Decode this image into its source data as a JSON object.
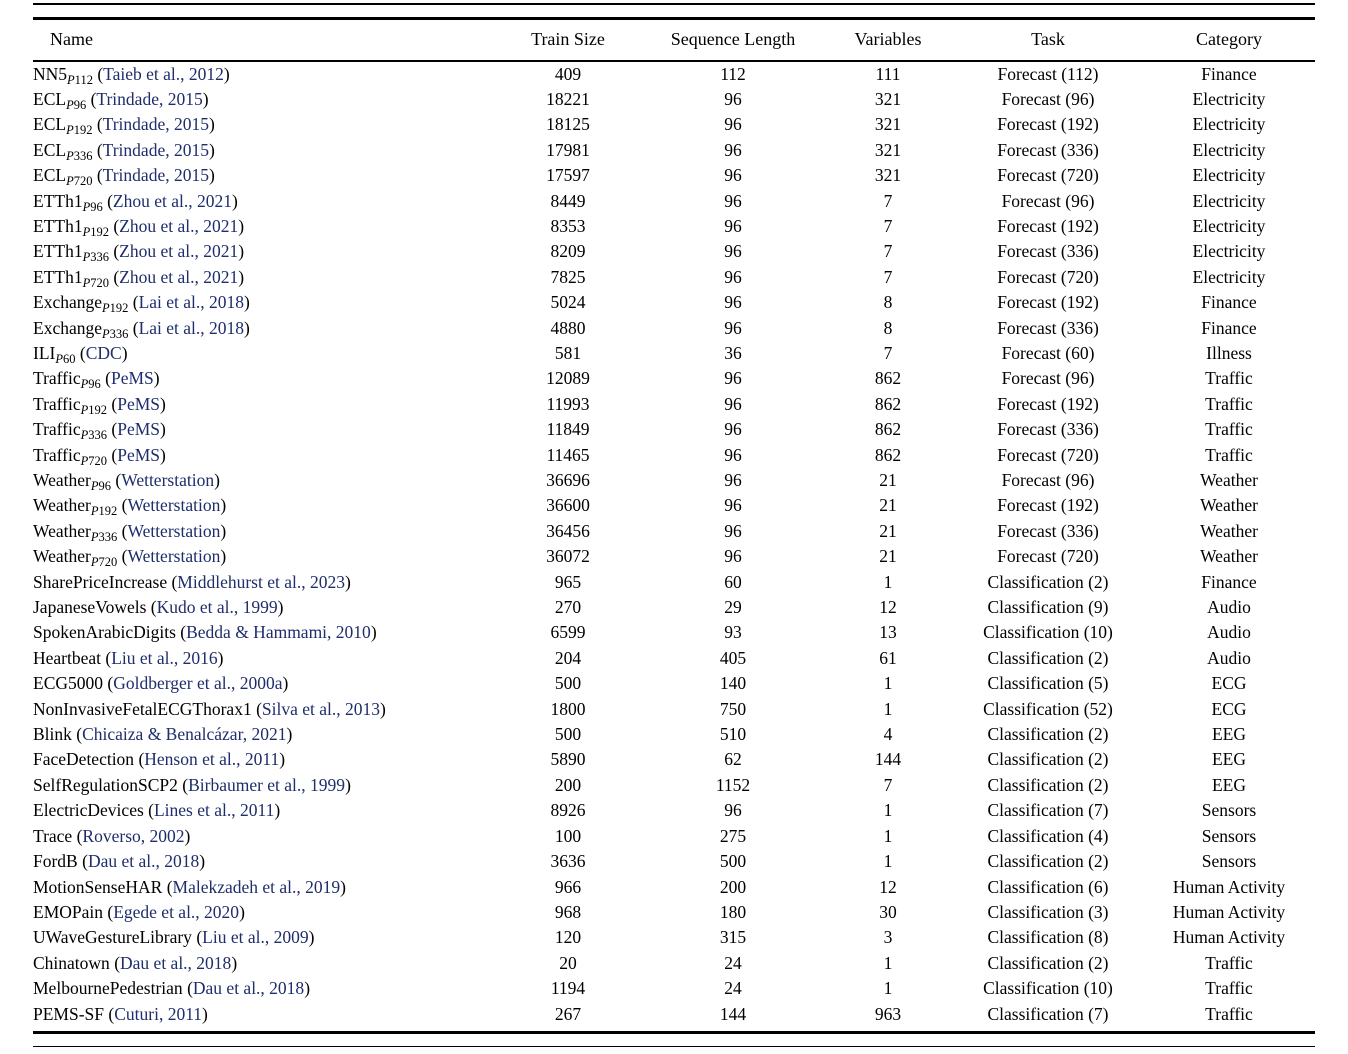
{
  "table": {
    "columns": [
      "Name",
      "Train Size",
      "Sequence Length",
      "Variables",
      "Task",
      "Category"
    ],
    "text_color": "#000000",
    "citation_color": "#1e2d6b",
    "rows": [
      {
        "name": "NN5",
        "subscript": "P112",
        "citation": "Taieb et al., 2012",
        "train_size": "409",
        "sequence_length": "112",
        "variables": "111",
        "task": "Forecast (112)",
        "category": "Finance"
      },
      {
        "name": "ECL",
        "subscript": "P96",
        "citation": "Trindade, 2015",
        "train_size": "18221",
        "sequence_length": "96",
        "variables": "321",
        "task": "Forecast (96)",
        "category": "Electricity"
      },
      {
        "name": "ECL",
        "subscript": "P192",
        "citation": "Trindade, 2015",
        "train_size": "18125",
        "sequence_length": "96",
        "variables": "321",
        "task": "Forecast (192)",
        "category": "Electricity"
      },
      {
        "name": "ECL",
        "subscript": "P336",
        "citation": "Trindade, 2015",
        "train_size": "17981",
        "sequence_length": "96",
        "variables": "321",
        "task": "Forecast (336)",
        "category": "Electricity"
      },
      {
        "name": "ECL",
        "subscript": "P720",
        "citation": "Trindade, 2015",
        "train_size": "17597",
        "sequence_length": "96",
        "variables": "321",
        "task": "Forecast (720)",
        "category": "Electricity"
      },
      {
        "name": "ETTh1",
        "subscript": "P96",
        "citation": "Zhou et al., 2021",
        "train_size": "8449",
        "sequence_length": "96",
        "variables": "7",
        "task": "Forecast (96)",
        "category": "Electricity"
      },
      {
        "name": "ETTh1",
        "subscript": "P192",
        "citation": "Zhou et al., 2021",
        "train_size": "8353",
        "sequence_length": "96",
        "variables": "7",
        "task": "Forecast (192)",
        "category": "Electricity"
      },
      {
        "name": "ETTh1",
        "subscript": "P336",
        "citation": "Zhou et al., 2021",
        "train_size": "8209",
        "sequence_length": "96",
        "variables": "7",
        "task": "Forecast (336)",
        "category": "Electricity"
      },
      {
        "name": "ETTh1",
        "subscript": "P720",
        "citation": "Zhou et al., 2021",
        "train_size": "7825",
        "sequence_length": "96",
        "variables": "7",
        "task": "Forecast (720)",
        "category": "Electricity"
      },
      {
        "name": "Exchange",
        "subscript": "P192",
        "citation": "Lai et al., 2018",
        "train_size": "5024",
        "sequence_length": "96",
        "variables": "8",
        "task": "Forecast (192)",
        "category": "Finance"
      },
      {
        "name": "Exchange",
        "subscript": "P336",
        "citation": "Lai et al., 2018",
        "train_size": "4880",
        "sequence_length": "96",
        "variables": "8",
        "task": "Forecast (336)",
        "category": "Finance"
      },
      {
        "name": "ILI",
        "subscript": "P60",
        "citation": "CDC",
        "train_size": "581",
        "sequence_length": "36",
        "variables": "7",
        "task": "Forecast (60)",
        "category": "Illness"
      },
      {
        "name": "Traffic",
        "subscript": "P96",
        "citation": "PeMS",
        "train_size": "12089",
        "sequence_length": "96",
        "variables": "862",
        "task": "Forecast (96)",
        "category": "Traffic"
      },
      {
        "name": "Traffic",
        "subscript": "P192",
        "citation": "PeMS",
        "train_size": "11993",
        "sequence_length": "96",
        "variables": "862",
        "task": "Forecast (192)",
        "category": "Traffic"
      },
      {
        "name": "Traffic",
        "subscript": "P336",
        "citation": "PeMS",
        "train_size": "11849",
        "sequence_length": "96",
        "variables": "862",
        "task": "Forecast (336)",
        "category": "Traffic"
      },
      {
        "name": "Traffic",
        "subscript": "P720",
        "citation": "PeMS",
        "train_size": "11465",
        "sequence_length": "96",
        "variables": "862",
        "task": "Forecast (720)",
        "category": "Traffic"
      },
      {
        "name": "Weather",
        "subscript": "P96",
        "citation": "Wetterstation",
        "train_size": "36696",
        "sequence_length": "96",
        "variables": "21",
        "task": "Forecast (96)",
        "category": "Weather"
      },
      {
        "name": "Weather",
        "subscript": "P192",
        "citation": "Wetterstation",
        "train_size": "36600",
        "sequence_length": "96",
        "variables": "21",
        "task": "Forecast (192)",
        "category": "Weather"
      },
      {
        "name": "Weather",
        "subscript": "P336",
        "citation": "Wetterstation",
        "train_size": "36456",
        "sequence_length": "96",
        "variables": "21",
        "task": "Forecast (336)",
        "category": "Weather"
      },
      {
        "name": "Weather",
        "subscript": "P720",
        "citation": "Wetterstation",
        "train_size": "36072",
        "sequence_length": "96",
        "variables": "21",
        "task": "Forecast (720)",
        "category": "Weather"
      },
      {
        "name": "SharePriceIncrease",
        "subscript": "",
        "citation": "Middlehurst et al., 2023",
        "train_size": "965",
        "sequence_length": "60",
        "variables": "1",
        "task": "Classification (2)",
        "category": "Finance"
      },
      {
        "name": "JapaneseVowels",
        "subscript": "",
        "citation": "Kudo et al., 1999",
        "train_size": "270",
        "sequence_length": "29",
        "variables": "12",
        "task": "Classification (9)",
        "category": "Audio"
      },
      {
        "name": "SpokenArabicDigits",
        "subscript": "",
        "citation": "Bedda & Hammami, 2010",
        "train_size": "6599",
        "sequence_length": "93",
        "variables": "13",
        "task": "Classification (10)",
        "category": "Audio"
      },
      {
        "name": "Heartbeat",
        "subscript": "",
        "citation": "Liu et al., 2016",
        "train_size": "204",
        "sequence_length": "405",
        "variables": "61",
        "task": "Classification (2)",
        "category": "Audio"
      },
      {
        "name": "ECG5000",
        "subscript": "",
        "citation": "Goldberger et al., 2000a",
        "train_size": "500",
        "sequence_length": "140",
        "variables": "1",
        "task": "Classification (5)",
        "category": "ECG"
      },
      {
        "name": "NonInvasiveFetalECGThorax1",
        "subscript": "",
        "citation": "Silva et al., 2013",
        "train_size": "1800",
        "sequence_length": "750",
        "variables": "1",
        "task": "Classification (52)",
        "category": "ECG"
      },
      {
        "name": "Blink",
        "subscript": "",
        "citation": "Chicaiza & Benalcázar, 2021",
        "train_size": "500",
        "sequence_length": "510",
        "variables": "4",
        "task": "Classification (2)",
        "category": "EEG"
      },
      {
        "name": "FaceDetection",
        "subscript": "",
        "citation": "Henson et al., 2011",
        "train_size": "5890",
        "sequence_length": "62",
        "variables": "144",
        "task": "Classification (2)",
        "category": "EEG"
      },
      {
        "name": "SelfRegulationSCP2",
        "subscript": "",
        "citation": "Birbaumer et al., 1999",
        "train_size": "200",
        "sequence_length": "1152",
        "variables": "7",
        "task": "Classification (2)",
        "category": "EEG"
      },
      {
        "name": "ElectricDevices",
        "subscript": "",
        "citation": "Lines et al., 2011",
        "train_size": "8926",
        "sequence_length": "96",
        "variables": "1",
        "task": "Classification (7)",
        "category": "Sensors"
      },
      {
        "name": "Trace",
        "subscript": "",
        "citation": "Roverso, 2002",
        "train_size": "100",
        "sequence_length": "275",
        "variables": "1",
        "task": "Classification (4)",
        "category": "Sensors"
      },
      {
        "name": "FordB",
        "subscript": "",
        "citation": "Dau et al., 2018",
        "train_size": "3636",
        "sequence_length": "500",
        "variables": "1",
        "task": "Classification (2)",
        "category": "Sensors"
      },
      {
        "name": "MotionSenseHAR",
        "subscript": "",
        "citation": "Malekzadeh et al., 2019",
        "train_size": "966",
        "sequence_length": "200",
        "variables": "12",
        "task": "Classification (6)",
        "category": "Human Activity"
      },
      {
        "name": "EMOPain",
        "subscript": "",
        "citation": "Egede et al., 2020",
        "train_size": "968",
        "sequence_length": "180",
        "variables": "30",
        "task": "Classification (3)",
        "category": "Human Activity"
      },
      {
        "name": "UWaveGestureLibrary",
        "subscript": "",
        "citation": "Liu et al., 2009",
        "train_size": "120",
        "sequence_length": "315",
        "variables": "3",
        "task": "Classification (8)",
        "category": "Human Activity"
      },
      {
        "name": "Chinatown",
        "subscript": "",
        "citation": "Dau et al., 2018",
        "train_size": "20",
        "sequence_length": "24",
        "variables": "1",
        "task": "Classification (2)",
        "category": "Traffic"
      },
      {
        "name": "MelbournePedestrian",
        "subscript": "",
        "citation": "Dau et al., 2018",
        "train_size": "1194",
        "sequence_length": "24",
        "variables": "1",
        "task": "Classification (10)",
        "category": "Traffic"
      },
      {
        "name": "PEMS-SF",
        "subscript": "",
        "citation": "Cuturi, 2011",
        "train_size": "267",
        "sequence_length": "144",
        "variables": "963",
        "task": "Classification (7)",
        "category": "Traffic"
      }
    ]
  }
}
